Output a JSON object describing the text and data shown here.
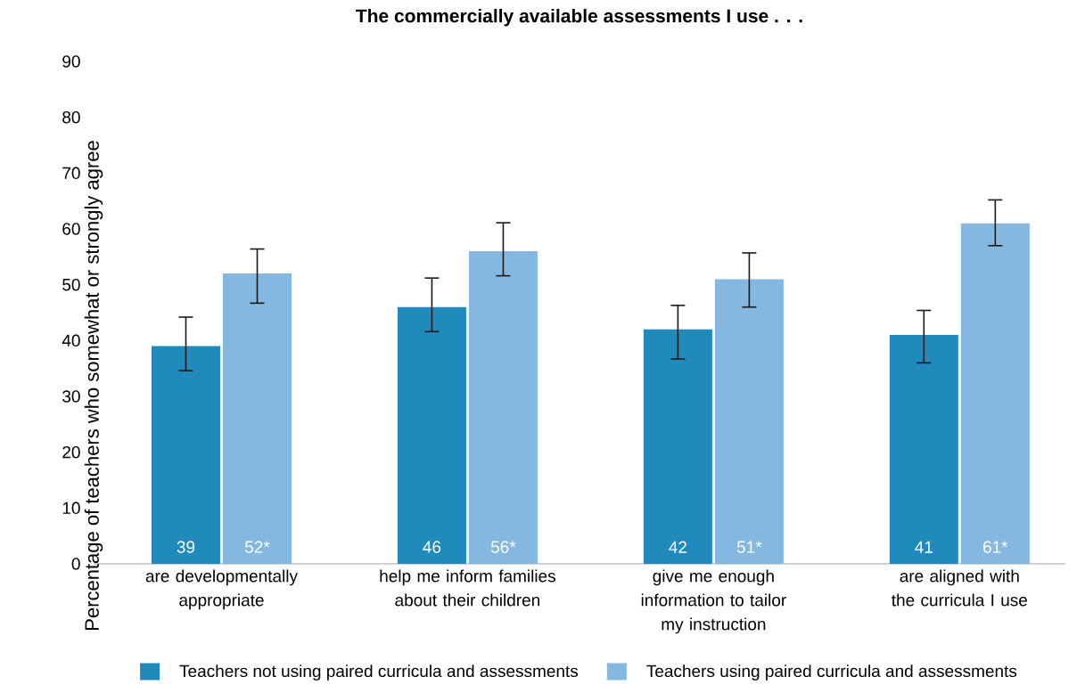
{
  "chart_data": {
    "type": "bar",
    "title": "The commercially available assessments I use . . .",
    "ylabel": "Percentage of teachers who somewhat or strongly agree",
    "categories": [
      "are developmentally appropriate",
      "help me inform families about their children",
      "give me enough information to tailor my instruction",
      "are aligned with the curricula I use"
    ],
    "series": [
      {
        "name": "Teachers not using paired curricula and assessments",
        "color": "#218abd",
        "values": [
          39,
          46,
          42,
          41
        ],
        "value_labels": [
          "39",
          "46",
          "42",
          "41"
        ],
        "errors": [
          [
            34.6,
            44.2
          ],
          [
            41.6,
            51.2
          ],
          [
            36.7,
            46.3
          ],
          [
            36.0,
            45.4
          ]
        ]
      },
      {
        "name": "Teachers using paired curricula and assessments",
        "color": "#85b8e0",
        "values": [
          52,
          56,
          51,
          61
        ],
        "value_labels": [
          "52*",
          "56*",
          "51*",
          "61*"
        ],
        "errors": [
          [
            46.7,
            56.4
          ],
          [
            51.6,
            61.1
          ],
          [
            46.0,
            55.7
          ],
          [
            57.0,
            65.2
          ]
        ]
      }
    ],
    "ylim": [
      0,
      90
    ],
    "yticks": [
      0,
      10,
      20,
      30,
      40,
      50,
      60,
      70,
      80,
      90
    ],
    "grid": false,
    "legend": "bottom"
  }
}
